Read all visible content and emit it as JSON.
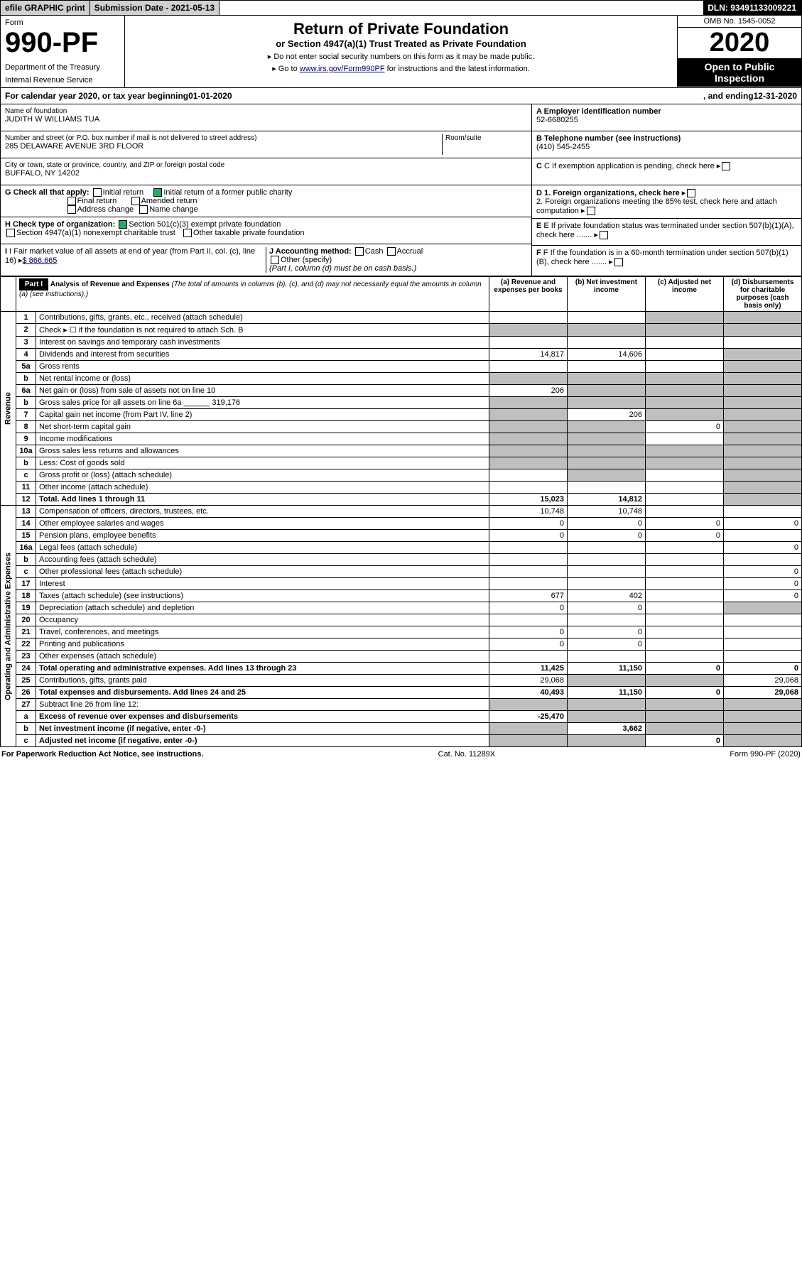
{
  "top": {
    "efile": "efile GRAPHIC print",
    "subdate_label": "Submission Date -",
    "subdate": "2021-05-13",
    "dln_label": "DLN:",
    "dln": "93491133009221"
  },
  "header": {
    "form_label": "Form",
    "form_no": "990-PF",
    "dept": "Department of the Treasury",
    "irs": "Internal Revenue Service",
    "title": "Return of Private Foundation",
    "subtitle": "or Section 4947(a)(1) Trust Treated as Private Foundation",
    "note1": "Do not enter social security numbers on this form as it may be made public.",
    "note2_pre": "Go to ",
    "note2_link": "www.irs.gov/Form990PF",
    "note2_post": " for instructions and the latest information.",
    "omb": "OMB No. 1545-0052",
    "year": "2020",
    "open": "Open to Public Inspection"
  },
  "calyear": {
    "pre": "For calendar year 2020, or tax year beginning ",
    "begin": "01-01-2020",
    "mid": ", and ending ",
    "end": "12-31-2020"
  },
  "info": {
    "name_lbl": "Name of foundation",
    "name": "JUDITH W WILLIAMS TUA",
    "addr_lbl": "Number and street (or P.O. box number if mail is not delivered to street address)",
    "addr": "285 DELAWARE AVENUE 3RD FLOOR",
    "room_lbl": "Room/suite",
    "city_lbl": "City or town, state or province, country, and ZIP or foreign postal code",
    "city": "BUFFALO, NY  14202",
    "g_lbl": "G Check all that apply:",
    "g_opts": [
      "Initial return",
      "Final return",
      "Address change",
      "Initial return of a former public charity",
      "Amended return",
      "Name change"
    ],
    "h_lbl": "H Check type of organization:",
    "h1": "Section 501(c)(3) exempt private foundation",
    "h2": "Section 4947(a)(1) nonexempt charitable trust",
    "h3": "Other taxable private foundation",
    "i_lbl": "I Fair market value of all assets at end of year (from Part II, col. (c), line 16)",
    "i_val": "$  866,665",
    "j_lbl": "J Accounting method:",
    "j_opts": [
      "Cash",
      "Accrual",
      "Other (specify)"
    ],
    "j_note": "(Part I, column (d) must be on cash basis.)",
    "a_lbl": "A Employer identification number",
    "a_val": "52-6680255",
    "b_lbl": "B Telephone number (see instructions)",
    "b_val": "(410) 545-2455",
    "c_lbl": "C If exemption application is pending, check here",
    "d1": "D 1. Foreign organizations, check here",
    "d2": "2. Foreign organizations meeting the 85% test, check here and attach computation",
    "e_lbl": "E If private foundation status was terminated under section 507(b)(1)(A), check here",
    "f_lbl": "F If the foundation is in a 60-month termination under section 507(b)(1)(B), check here"
  },
  "part1": {
    "label": "Part I",
    "title": "Analysis of Revenue and Expenses",
    "title_note": "(The total of amounts in columns (b), (c), and (d) may not necessarily equal the amounts in column (a) (see instructions).)",
    "cols": [
      "(a) Revenue and expenses per books",
      "(b) Net investment income",
      "(c) Adjusted net income",
      "(d) Disbursements for charitable purposes (cash basis only)"
    ],
    "side_rev": "Revenue",
    "side_exp": "Operating and Administrative Expenses",
    "rows": [
      {
        "n": "1",
        "d": "Contributions, gifts, grants, etc., received (attach schedule)",
        "a": "",
        "b": "",
        "c": "",
        "dcol": "",
        "greyB": false,
        "greyC": true,
        "greyD": true
      },
      {
        "n": "2",
        "d": "Check ▸ ☐ if the foundation is not required to attach Sch. B",
        "a": "",
        "b": "",
        "c": "",
        "dcol": "",
        "greyA": true,
        "greyB": true,
        "greyC": true,
        "greyD": true
      },
      {
        "n": "3",
        "d": "Interest on savings and temporary cash investments",
        "a": "",
        "b": "",
        "c": "",
        "dcol": ""
      },
      {
        "n": "4",
        "d": "Dividends and interest from securities",
        "a": "14,817",
        "b": "14,606",
        "c": "",
        "dcol": "",
        "greyD": true
      },
      {
        "n": "5a",
        "d": "Gross rents",
        "a": "",
        "b": "",
        "c": "",
        "dcol": "",
        "greyD": true
      },
      {
        "n": "b",
        "d": "Net rental income or (loss)",
        "a": "",
        "b": "",
        "c": "",
        "dcol": "",
        "greyA": true,
        "greyB": true,
        "greyC": true,
        "greyD": true
      },
      {
        "n": "6a",
        "d": "Net gain or (loss) from sale of assets not on line 10",
        "a": "206",
        "b": "",
        "c": "",
        "dcol": "",
        "greyB": true,
        "greyC": true,
        "greyD": true
      },
      {
        "n": "b",
        "d": "Gross sales price for all assets on line 6a ______ 319,176",
        "a": "",
        "b": "",
        "c": "",
        "dcol": "",
        "greyA": true,
        "greyB": true,
        "greyC": true,
        "greyD": true
      },
      {
        "n": "7",
        "d": "Capital gain net income (from Part IV, line 2)",
        "a": "",
        "b": "206",
        "c": "",
        "dcol": "",
        "greyA": true,
        "greyC": true,
        "greyD": true
      },
      {
        "n": "8",
        "d": "Net short-term capital gain",
        "a": "",
        "b": "",
        "c": "0",
        "dcol": "",
        "greyA": true,
        "greyB": true,
        "greyD": true
      },
      {
        "n": "9",
        "d": "Income modifications",
        "a": "",
        "b": "",
        "c": "",
        "dcol": "",
        "greyA": true,
        "greyB": true,
        "greyD": true
      },
      {
        "n": "10a",
        "d": "Gross sales less returns and allowances",
        "a": "",
        "b": "",
        "c": "",
        "dcol": "",
        "greyA": true,
        "greyB": true,
        "greyC": true,
        "greyD": true
      },
      {
        "n": "b",
        "d": "Less: Cost of goods sold",
        "a": "",
        "b": "",
        "c": "",
        "dcol": "",
        "greyA": true,
        "greyB": true,
        "greyC": true,
        "greyD": true
      },
      {
        "n": "c",
        "d": "Gross profit or (loss) (attach schedule)",
        "a": "",
        "b": "",
        "c": "",
        "dcol": "",
        "greyB": true,
        "greyD": true
      },
      {
        "n": "11",
        "d": "Other income (attach schedule)",
        "a": "",
        "b": "",
        "c": "",
        "dcol": "",
        "greyD": true
      },
      {
        "n": "12",
        "d": "Total. Add lines 1 through 11",
        "a": "15,023",
        "b": "14,812",
        "c": "",
        "dcol": "",
        "bold": true,
        "greyD": true
      },
      {
        "n": "13",
        "d": "Compensation of officers, directors, trustees, etc.",
        "a": "10,748",
        "b": "10,748",
        "c": "",
        "dcol": ""
      },
      {
        "n": "14",
        "d": "Other employee salaries and wages",
        "a": "0",
        "b": "0",
        "c": "0",
        "dcol": "0"
      },
      {
        "n": "15",
        "d": "Pension plans, employee benefits",
        "a": "0",
        "b": "0",
        "c": "0",
        "dcol": ""
      },
      {
        "n": "16a",
        "d": "Legal fees (attach schedule)",
        "a": "",
        "b": "",
        "c": "",
        "dcol": "0"
      },
      {
        "n": "b",
        "d": "Accounting fees (attach schedule)",
        "a": "",
        "b": "",
        "c": "",
        "dcol": ""
      },
      {
        "n": "c",
        "d": "Other professional fees (attach schedule)",
        "a": "",
        "b": "",
        "c": "",
        "dcol": "0"
      },
      {
        "n": "17",
        "d": "Interest",
        "a": "",
        "b": "",
        "c": "",
        "dcol": "0"
      },
      {
        "n": "18",
        "d": "Taxes (attach schedule) (see instructions)",
        "a": "677",
        "b": "402",
        "c": "",
        "dcol": "0"
      },
      {
        "n": "19",
        "d": "Depreciation (attach schedule) and depletion",
        "a": "0",
        "b": "0",
        "c": "",
        "dcol": "",
        "greyD": true
      },
      {
        "n": "20",
        "d": "Occupancy",
        "a": "",
        "b": "",
        "c": "",
        "dcol": ""
      },
      {
        "n": "21",
        "d": "Travel, conferences, and meetings",
        "a": "0",
        "b": "0",
        "c": "",
        "dcol": ""
      },
      {
        "n": "22",
        "d": "Printing and publications",
        "a": "0",
        "b": "0",
        "c": "",
        "dcol": ""
      },
      {
        "n": "23",
        "d": "Other expenses (attach schedule)",
        "a": "",
        "b": "",
        "c": "",
        "dcol": ""
      },
      {
        "n": "24",
        "d": "Total operating and administrative expenses. Add lines 13 through 23",
        "a": "11,425",
        "b": "11,150",
        "c": "0",
        "dcol": "0",
        "bold": true
      },
      {
        "n": "25",
        "d": "Contributions, gifts, grants paid",
        "a": "29,068",
        "b": "",
        "c": "",
        "dcol": "29,068",
        "greyB": true,
        "greyC": true
      },
      {
        "n": "26",
        "d": "Total expenses and disbursements. Add lines 24 and 25",
        "a": "40,493",
        "b": "11,150",
        "c": "0",
        "dcol": "29,068",
        "bold": true
      },
      {
        "n": "27",
        "d": "Subtract line 26 from line 12:",
        "a": "",
        "b": "",
        "c": "",
        "dcol": "",
        "greyA": true,
        "greyB": true,
        "greyC": true,
        "greyD": true
      },
      {
        "n": "a",
        "d": "Excess of revenue over expenses and disbursements",
        "a": "-25,470",
        "b": "",
        "c": "",
        "dcol": "",
        "bold": true,
        "greyB": true,
        "greyC": true,
        "greyD": true
      },
      {
        "n": "b",
        "d": "Net investment income (if negative, enter -0-)",
        "a": "",
        "b": "3,662",
        "c": "",
        "dcol": "",
        "bold": true,
        "greyA": true,
        "greyC": true,
        "greyD": true
      },
      {
        "n": "c",
        "d": "Adjusted net income (if negative, enter -0-)",
        "a": "",
        "b": "",
        "c": "0",
        "dcol": "",
        "bold": true,
        "greyA": true,
        "greyB": true,
        "greyD": true
      }
    ]
  },
  "footer": {
    "left": "For Paperwork Reduction Act Notice, see instructions.",
    "mid": "Cat. No. 11289X",
    "right": "Form 990-PF (2020)"
  }
}
